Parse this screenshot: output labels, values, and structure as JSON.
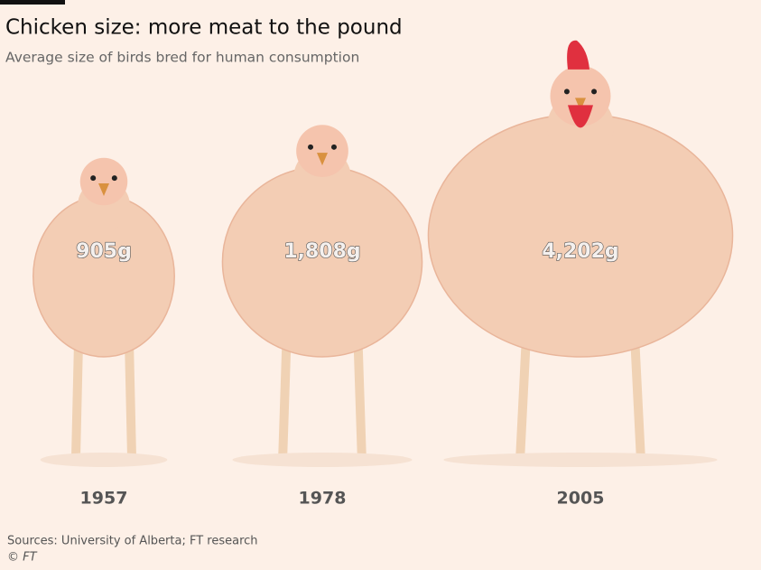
{
  "chart_data": {
    "type": "pictogram",
    "title": "Chicken size: more meat to the pound",
    "subtitle": "Average size of birds bred for human consumption",
    "categories": [
      "1957",
      "1978",
      "2005"
    ],
    "values": [
      905,
      1808,
      4202
    ],
    "value_labels": [
      "905g",
      "1,808g",
      "4,202g"
    ],
    "color": "#f3cdb4"
  },
  "footer": {
    "source": "Sources: University of Alberta; FT research",
    "copyright": "© FT"
  }
}
